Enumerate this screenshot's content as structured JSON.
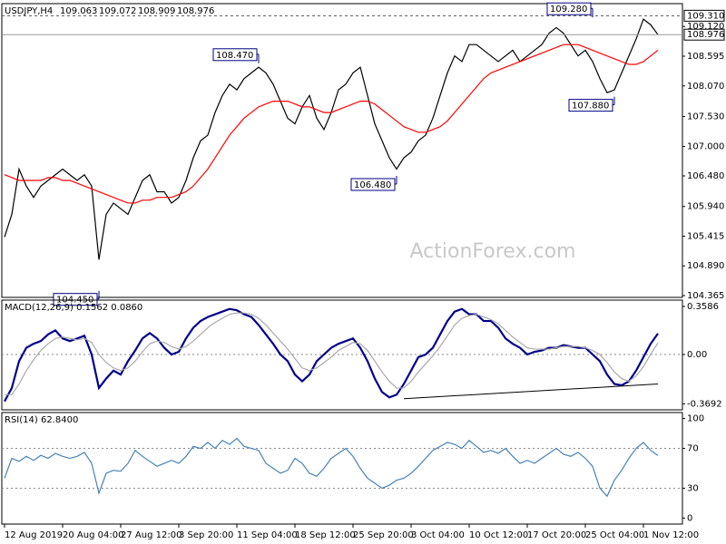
{
  "chart_data": [
    {
      "type": "line",
      "title": "USDJPY,H4",
      "ohlc": [
        109.063,
        109.072,
        108.909,
        108.976
      ],
      "ylim": [
        104.333,
        109.524
      ],
      "yticks": [
        {
          "value": 109.12,
          "label": "109.120"
        },
        108.595,
        {
          "value": 108.07,
          "label": "108.070"
        },
        {
          "value": 107.53,
          "label": "107.530"
        },
        {
          "value": 107.0,
          "label": "107.000"
        },
        {
          "value": 106.48,
          "label": "106.480"
        },
        {
          "value": 105.94,
          "label": "105.940"
        },
        105.415,
        {
          "value": 104.89,
          "label": "104.890"
        },
        104.365
      ],
      "dashed_level": {
        "value": 109.31,
        "label": "109.310"
      },
      "series": [
        {
          "color": "#000000",
          "values": [
            105.4,
            105.8,
            106.6,
            106.3,
            106.1,
            106.3,
            106.4,
            106.5,
            106.6,
            106.5,
            106.4,
            106.5,
            106.3,
            105.0,
            105.8,
            106.0,
            105.9,
            105.8,
            106.1,
            106.4,
            106.5,
            106.2,
            106.2,
            106.0,
            106.1,
            106.4,
            106.8,
            107.1,
            107.2,
            107.6,
            107.9,
            108.1,
            108.0,
            108.2,
            108.3,
            108.4,
            108.3,
            108.1,
            107.8,
            107.5,
            107.4,
            107.7,
            107.9,
            107.5,
            107.3,
            107.6,
            108.0,
            108.1,
            108.3,
            108.4,
            107.9,
            107.4,
            107.1,
            106.8,
            106.6,
            106.8,
            106.9,
            107.1,
            107.2,
            107.5,
            107.9,
            108.3,
            108.6,
            108.5,
            108.8,
            108.8,
            108.7,
            108.6,
            108.5,
            108.6,
            108.7,
            108.5,
            108.6,
            108.7,
            108.8,
            109.0,
            109.1,
            109.0,
            108.8,
            108.6,
            108.7,
            108.5,
            108.2,
            107.95,
            108.0,
            108.3,
            108.6,
            108.9,
            109.25,
            109.15,
            108.976
          ]
        },
        {
          "color": "#ff0000",
          "values": [
            106.5,
            106.45,
            106.4,
            106.4,
            106.4,
            106.4,
            106.45,
            106.45,
            106.4,
            106.4,
            106.35,
            106.3,
            106.25,
            106.2,
            106.15,
            106.1,
            106.05,
            106.0,
            106.0,
            106.05,
            106.05,
            106.1,
            106.1,
            106.1,
            106.15,
            106.2,
            106.3,
            106.45,
            106.6,
            106.8,
            107.0,
            107.2,
            107.35,
            107.5,
            107.6,
            107.7,
            107.75,
            107.8,
            107.8,
            107.8,
            107.75,
            107.7,
            107.7,
            107.65,
            107.6,
            107.6,
            107.65,
            107.7,
            107.75,
            107.8,
            107.8,
            107.75,
            107.65,
            107.55,
            107.45,
            107.35,
            107.3,
            107.25,
            107.25,
            107.3,
            107.35,
            107.45,
            107.6,
            107.75,
            107.9,
            108.05,
            108.2,
            108.3,
            108.35,
            108.4,
            108.45,
            108.5,
            108.55,
            108.6,
            108.65,
            108.7,
            108.75,
            108.8,
            108.8,
            108.8,
            108.75,
            108.7,
            108.65,
            108.6,
            108.55,
            108.5,
            108.45,
            108.45,
            108.5,
            108.6,
            108.7
          ]
        }
      ],
      "annotations": [
        {
          "x": 13,
          "value": 104.45,
          "label": "104.450"
        },
        {
          "x": 54,
          "value": 106.48,
          "label": "106.480"
        },
        {
          "x": 35,
          "value": 108.47,
          "label": "108.470"
        },
        {
          "x": 81,
          "value": 109.28,
          "label": "109.280"
        },
        {
          "x": 84,
          "value": 107.88,
          "label": "107.880"
        }
      ],
      "watermark": "ActionForex.com"
    },
    {
      "type": "line",
      "title": "MACD(12,26,9) 0.1562 0.0860",
      "ylim": [
        -0.413,
        0.406
      ],
      "yticks": [
        0.3586,
        {
          "value": 0,
          "label": "0.00"
        },
        -0.3692
      ],
      "levels": [
        0
      ],
      "series": [
        {
          "color": "#00008b",
          "values": [
            -0.35,
            -0.25,
            -0.05,
            0.05,
            0.08,
            0.1,
            0.15,
            0.18,
            0.12,
            0.1,
            0.12,
            0.14,
            0.0,
            -0.25,
            -0.18,
            -0.12,
            -0.15,
            -0.05,
            0.03,
            0.12,
            0.16,
            0.12,
            0.05,
            0.0,
            0.02,
            0.12,
            0.2,
            0.25,
            0.28,
            0.3,
            0.32,
            0.34,
            0.33,
            0.3,
            0.28,
            0.22,
            0.15,
            0.08,
            0.0,
            -0.05,
            -0.15,
            -0.2,
            -0.15,
            -0.05,
            0.0,
            0.05,
            0.08,
            0.1,
            0.12,
            0.05,
            -0.05,
            -0.18,
            -0.28,
            -0.32,
            -0.3,
            -0.22,
            -0.12,
            -0.02,
            0.0,
            0.05,
            0.15,
            0.25,
            0.32,
            0.34,
            0.3,
            0.3,
            0.25,
            0.25,
            0.2,
            0.12,
            0.08,
            0.05,
            0.0,
            0.02,
            0.03,
            0.05,
            0.05,
            0.07,
            0.06,
            0.05,
            0.05,
            0.0,
            -0.05,
            -0.15,
            -0.22,
            -0.23,
            -0.2,
            -0.12,
            -0.02,
            0.08,
            0.1562
          ]
        },
        {
          "color": "#a9a9a9",
          "values": [
            -0.3,
            -0.3,
            -0.22,
            -0.12,
            -0.04,
            0.03,
            0.08,
            0.12,
            0.13,
            0.12,
            0.11,
            0.12,
            0.09,
            0.0,
            -0.06,
            -0.1,
            -0.12,
            -0.1,
            -0.05,
            0.02,
            0.08,
            0.1,
            0.09,
            0.06,
            0.04,
            0.06,
            0.1,
            0.15,
            0.2,
            0.24,
            0.27,
            0.3,
            0.31,
            0.31,
            0.3,
            0.27,
            0.22,
            0.16,
            0.1,
            0.04,
            -0.03,
            -0.1,
            -0.12,
            -0.1,
            -0.06,
            -0.02,
            0.03,
            0.06,
            0.09,
            0.08,
            0.03,
            -0.05,
            -0.13,
            -0.2,
            -0.25,
            -0.25,
            -0.2,
            -0.13,
            -0.07,
            -0.01,
            0.06,
            0.14,
            0.22,
            0.27,
            0.29,
            0.3,
            0.28,
            0.26,
            0.23,
            0.18,
            0.13,
            0.09,
            0.05,
            0.04,
            0.04,
            0.04,
            0.05,
            0.06,
            0.06,
            0.06,
            0.05,
            0.03,
            0.0,
            -0.06,
            -0.13,
            -0.18,
            -0.2,
            -0.16,
            -0.09,
            0.0,
            0.086
          ]
        }
      ],
      "trendline": {
        "x": [
          55,
          90
        ],
        "values": [
          -0.33,
          -0.22
        ]
      }
    },
    {
      "type": "line",
      "title": "RSI(14) 62.8400",
      "ylim": [
        -6,
        106
      ],
      "yticks": [
        100,
        70,
        30,
        0
      ],
      "levels": [
        70,
        30
      ],
      "series": [
        {
          "color": "#4682b4",
          "values": [
            40,
            60,
            57,
            62,
            58,
            63,
            60,
            65,
            62,
            60,
            62,
            66,
            55,
            25,
            45,
            48,
            47,
            55,
            68,
            62,
            57,
            52,
            55,
            58,
            55,
            62,
            72,
            70,
            76,
            70,
            78,
            74,
            80,
            72,
            70,
            68,
            55,
            50,
            45,
            48,
            60,
            55,
            45,
            42,
            50,
            60,
            65,
            70,
            62,
            50,
            40,
            35,
            30,
            33,
            38,
            40,
            45,
            52,
            60,
            68,
            72,
            76,
            74,
            70,
            78,
            72,
            66,
            68,
            65,
            70,
            62,
            55,
            58,
            55,
            60,
            65,
            70,
            64,
            62,
            66,
            60,
            52,
            30,
            22,
            38,
            48,
            60,
            70,
            76,
            68,
            62.84
          ]
        }
      ],
      "categories": [
        "12 Aug 2019",
        null,
        null,
        null,
        null,
        null,
        null,
        null,
        "20 Aug 04:00",
        null,
        null,
        null,
        null,
        null,
        null,
        null,
        "27 Aug 12:00",
        null,
        null,
        null,
        null,
        null,
        null,
        null,
        "3 Sep 20:00",
        null,
        null,
        null,
        null,
        null,
        null,
        null,
        "11 Sep 04:00",
        null,
        null,
        null,
        null,
        null,
        null,
        null,
        "18 Sep 12:00",
        null,
        null,
        null,
        null,
        null,
        null,
        null,
        "25 Sep 20:00",
        null,
        null,
        null,
        null,
        null,
        null,
        null,
        "3 Oct 04:00",
        null,
        null,
        null,
        null,
        null,
        null,
        null,
        "10 Oct 12:00",
        null,
        null,
        null,
        null,
        null,
        null,
        null,
        "17 Oct 20:00",
        null,
        null,
        null,
        null,
        null,
        null,
        null,
        "25 Oct 04:00",
        null,
        null,
        null,
        null,
        null,
        null,
        null,
        "1 Nov 12:00",
        null,
        null
      ]
    }
  ]
}
